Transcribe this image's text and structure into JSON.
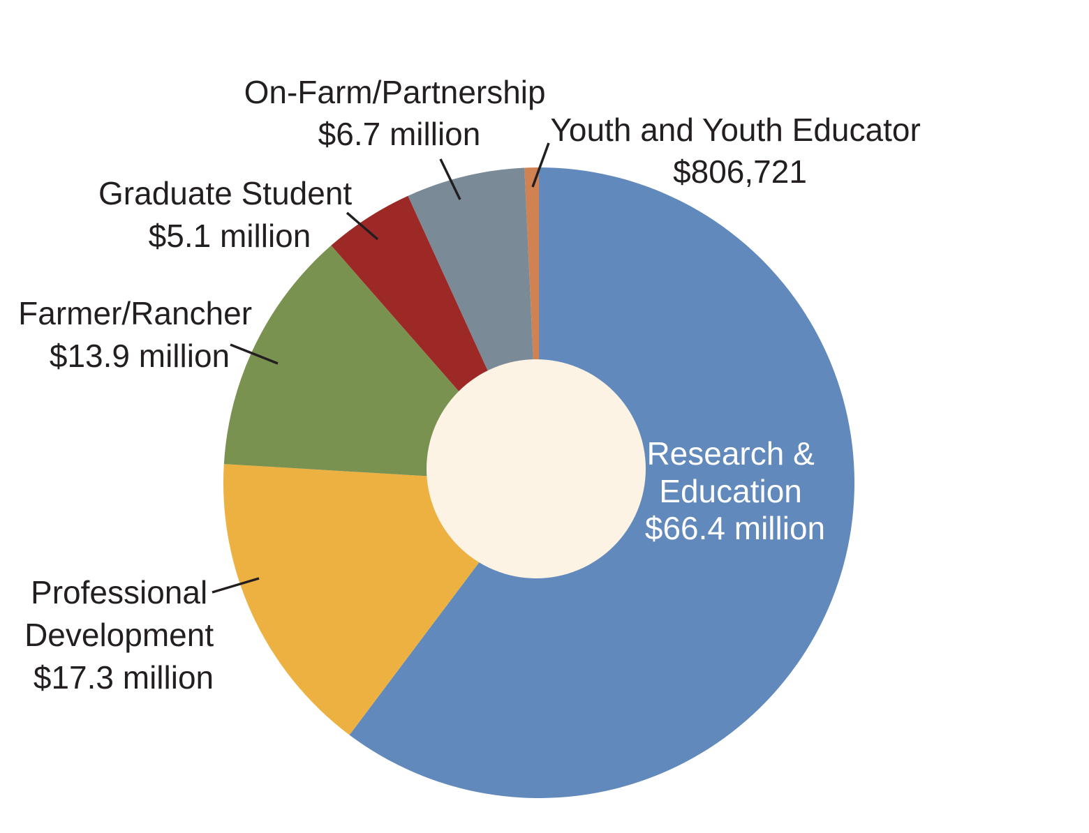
{
  "chart_data": {
    "type": "pie",
    "donut": true,
    "title": "",
    "center_color": "#fdf3e5",
    "slices": [
      {
        "key": "youth",
        "label_lines": [
          "Youth and Youth Educator",
          "$806,721"
        ],
        "value": 0.806721,
        "color": "#d08252"
      },
      {
        "key": "research",
        "label_lines": [
          "Research &",
          "Education",
          "$66.4 million"
        ],
        "value": 66.4,
        "color": "#6189bc"
      },
      {
        "key": "professional",
        "label_lines": [
          "Professional",
          "Development",
          "$17.3 million"
        ],
        "value": 17.3,
        "color": "#edb142"
      },
      {
        "key": "farmer",
        "label_lines": [
          "Farmer/Rancher",
          "$13.9 million"
        ],
        "value": 13.9,
        "color": "#7a924f"
      },
      {
        "key": "graduate",
        "label_lines": [
          "Graduate Student",
          "$5.1 million"
        ],
        "value": 5.1,
        "color": "#9c2926"
      },
      {
        "key": "onfarm",
        "label_lines": [
          "On-Farm/Partnership",
          "$6.7 million"
        ],
        "value": 6.7,
        "color": "#7a8a96"
      }
    ]
  }
}
